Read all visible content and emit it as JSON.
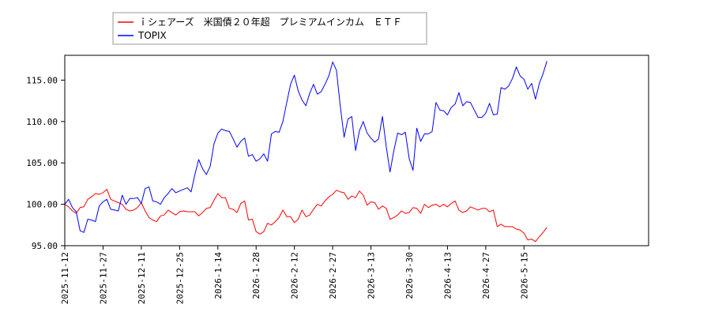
{
  "chart_data": {
    "type": "line",
    "title": "",
    "xlabel": "",
    "ylabel": "",
    "ylim": [
      95,
      118
    ],
    "y_ticks": [
      "95.00",
      "100.00",
      "105.00",
      "110.00",
      "115.00"
    ],
    "x_ticks": [
      "2025-11-12",
      "2025-11-27",
      "2025-12-11",
      "2025-12-25",
      "2026-1-14",
      "2026-1-28",
      "2026-2-12",
      "2026-2-27",
      "2026-3-13",
      "2026-3-30",
      "2026-4-13",
      "2026-4-27",
      "2026-5-15"
    ],
    "x_tick_index": [
      0,
      10,
      20,
      30,
      40,
      50,
      60,
      70,
      80,
      90,
      100,
      110,
      120
    ],
    "grid": false,
    "legend_position": "top-left",
    "series": [
      {
        "name": "ｉシェアーズ　米国債２０年超　プレミアムインカム　ＥＴＦ",
        "color": "#ff0000",
        "values": [
          100.0,
          99.7,
          99.2,
          98.9,
          99.6,
          99.7,
          100.6,
          100.9,
          101.3,
          101.2,
          101.4,
          101.8,
          100.6,
          100.4,
          100.2,
          100.0,
          99.4,
          99.2,
          99.3,
          99.6,
          100.2,
          99.2,
          98.4,
          98.1,
          97.9,
          98.6,
          98.7,
          99.3,
          99.0,
          98.7,
          99.1,
          99.2,
          99.1,
          99.1,
          99.1,
          98.6,
          99.0,
          99.5,
          99.6,
          100.5,
          101.3,
          100.8,
          100.8,
          99.5,
          99.4,
          99.0,
          100.1,
          100.4,
          98.1,
          98.2,
          96.7,
          96.4,
          96.7,
          97.7,
          97.5,
          97.9,
          98.4,
          99.3,
          98.5,
          98.5,
          97.8,
          98.2,
          99.3,
          98.5,
          98.7,
          99.4,
          100.0,
          99.8,
          100.4,
          100.9,
          101.2,
          101.7,
          101.5,
          101.4,
          100.6,
          101.0,
          100.8,
          101.6,
          101.1,
          99.9,
          100.3,
          100.2,
          99.4,
          99.8,
          99.5,
          98.2,
          98.4,
          98.7,
          99.2,
          98.9,
          99.0,
          99.6,
          99.5,
          98.9,
          100.0,
          99.6,
          99.9,
          100.0,
          99.7,
          100.0,
          99.7,
          100.1,
          100.4,
          99.3,
          99.0,
          99.2,
          99.7,
          99.5,
          99.3,
          99.5,
          99.5,
          99.1,
          99.3,
          97.3,
          97.6,
          97.3,
          97.3,
          97.3,
          97.0,
          96.9,
          96.5,
          95.7,
          95.8,
          95.5,
          96.1,
          96.6,
          97.2
        ]
      },
      {
        "name": "TOPIX",
        "color": "#0000ff",
        "values": [
          100.0,
          100.6,
          99.6,
          99.1,
          96.8,
          96.6,
          98.2,
          98.1,
          97.9,
          99.8,
          100.3,
          100.6,
          99.4,
          99.3,
          99.2,
          101.1,
          100.0,
          100.7,
          100.7,
          100.8,
          100.1,
          101.9,
          102.1,
          100.4,
          100.3,
          100.0,
          100.8,
          101.3,
          101.9,
          101.4,
          101.6,
          101.8,
          102.0,
          101.5,
          103.6,
          105.4,
          104.3,
          103.6,
          104.6,
          107.3,
          108.6,
          109.1,
          108.9,
          108.8,
          107.9,
          106.9,
          107.6,
          108.0,
          105.8,
          106.0,
          105.2,
          105.5,
          106.1,
          105.2,
          108.5,
          108.8,
          108.7,
          110.0,
          112.3,
          114.5,
          115.6,
          113.7,
          112.6,
          111.9,
          113.4,
          114.5,
          113.3,
          113.6,
          114.5,
          115.5,
          117.2,
          116.2,
          111.8,
          108.1,
          110.3,
          110.6,
          106.5,
          108.9,
          110.0,
          108.6,
          108.0,
          107.5,
          107.9,
          110.6,
          107.0,
          103.9,
          106.5,
          108.6,
          108.4,
          108.7,
          105.5,
          104.1,
          109.2,
          107.6,
          108.5,
          108.5,
          108.8,
          112.3,
          111.4,
          111.3,
          110.8,
          111.7,
          112.1,
          113.5,
          111.9,
          112.4,
          112.3,
          111.4,
          110.5,
          110.5,
          111.0,
          112.2,
          110.8,
          110.9,
          114.1,
          113.9,
          114.3,
          115.2,
          116.6,
          115.5,
          115.1,
          113.9,
          114.6,
          112.7,
          114.6,
          115.8,
          117.3
        ]
      }
    ]
  }
}
